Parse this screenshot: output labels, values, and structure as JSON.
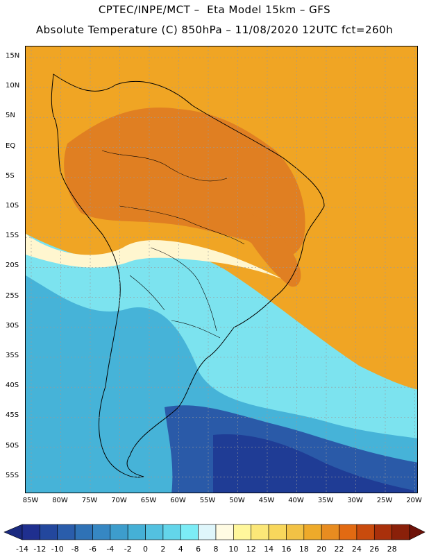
{
  "title": {
    "line1": "CPTEC/INPE/MCT –  Eta Model 15km – GFS",
    "line2": "Absolute Temperature (C) 850hPa – 11/08/2020 12UTC fct=260h"
  },
  "axes": {
    "lat_labels": [
      "15N",
      "10N",
      "5N",
      "EQ",
      "5S",
      "10S",
      "15S",
      "20S",
      "25S",
      "30S",
      "35S",
      "40S",
      "45S",
      "50S",
      "55S"
    ],
    "lon_labels": [
      "85W",
      "80W",
      "75W",
      "70W",
      "65W",
      "60W",
      "55W",
      "50W",
      "45W",
      "40W",
      "35W",
      "30W",
      "25W",
      "20W"
    ]
  },
  "colorbar": {
    "ticks": [
      "-14",
      "-12",
      "-10",
      "-8",
      "-6",
      "-4",
      "-2",
      "0",
      "2",
      "4",
      "6",
      "8",
      "10",
      "12",
      "14",
      "16",
      "18",
      "20",
      "22",
      "24",
      "26",
      "28"
    ],
    "colors": [
      "#1f2f8f",
      "#23479d",
      "#2a5dab",
      "#2f72b6",
      "#3687c3",
      "#3d9dcc",
      "#45b0d6",
      "#53c1e0",
      "#63d5ea",
      "#7cecf6",
      "#dff6fb",
      "#fffbe3",
      "#fff79c",
      "#fbe778",
      "#f8d75c",
      "#f2c245",
      "#eeaa2a",
      "#e88c20",
      "#e26a12",
      "#c94b0d",
      "#a9300b",
      "#8a2009"
    ],
    "under_color": "#1b2a80",
    "over_color": "#6e1208"
  },
  "map": {
    "regions": [
      "South America",
      "Atlantic Ocean",
      "Pacific Ocean"
    ],
    "field_colors": {
      "warm_core": "#e07f22",
      "warm": "#f0a524",
      "mild": "#f7c33d",
      "neutral": "#fff6cf",
      "cool": "#7ce3ef",
      "cold": "#46b3d8",
      "very_cold": "#2a5aa8",
      "coldest": "#1f3c95"
    }
  }
}
